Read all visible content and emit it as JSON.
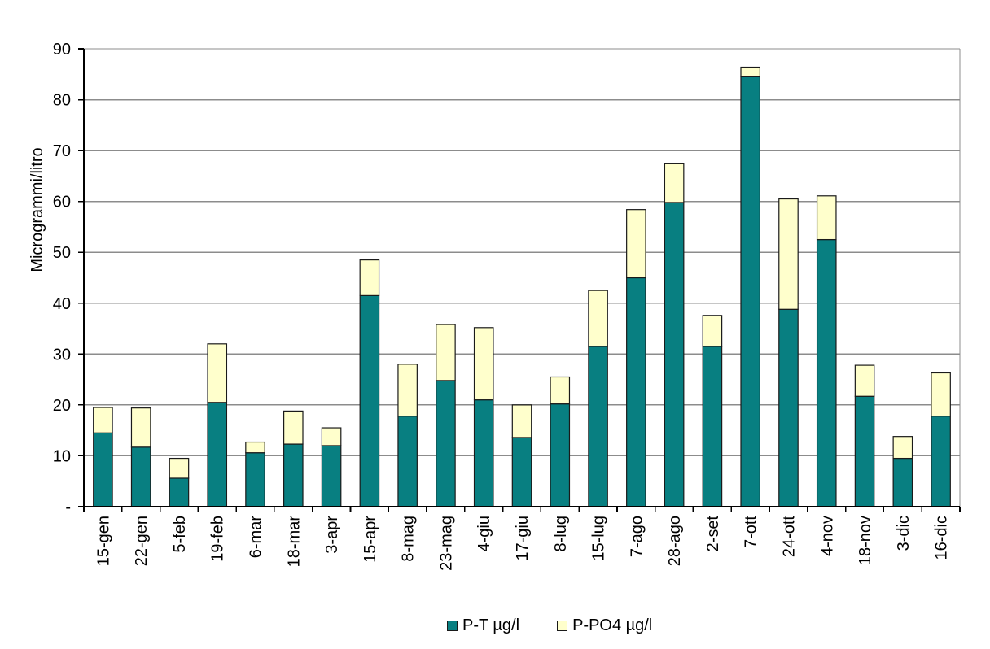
{
  "page": {
    "background": "#ffffff"
  },
  "chart_data": {
    "type": "bar",
    "stacked": true,
    "title": "",
    "xlabel": "",
    "ylabel": "Microgrammi/litro",
    "ylim": [
      0,
      90
    ],
    "y_tick_step": 10,
    "y_zero_label": "-",
    "grid": true,
    "legend_position": "bottom",
    "categories": [
      "15-gen",
      "22-gen",
      "5-feb",
      "19-feb",
      "6-mar",
      "18-mar",
      "3-apr",
      "15-apr",
      "8-mag",
      "23-mag",
      "4-giu",
      "17-giu",
      "8-lug",
      "15-lug",
      "7-ago",
      "28-ago",
      "2-set",
      "7-ott",
      "24-ott",
      "4-nov",
      "18-nov",
      "3-dic",
      "16-dic"
    ],
    "series": [
      {
        "name": "P-T µg/l",
        "color": "#087f81",
        "values": [
          14.5,
          11.7,
          5.6,
          20.5,
          10.6,
          12.3,
          12.0,
          41.5,
          17.8,
          24.8,
          21.0,
          13.6,
          20.2,
          31.5,
          45.0,
          59.8,
          31.5,
          84.5,
          38.8,
          52.5,
          21.7,
          9.5,
          17.8
        ]
      },
      {
        "name": "P-PO4 µg/l",
        "color": "#ffffcc",
        "values": [
          5.0,
          7.7,
          3.9,
          11.5,
          2.1,
          6.5,
          3.5,
          7.0,
          10.2,
          11.0,
          14.2,
          6.4,
          5.3,
          11.0,
          13.4,
          7.6,
          6.1,
          1.9,
          21.7,
          8.6,
          6.1,
          4.3,
          8.5
        ]
      }
    ],
    "stack_totals": [
      19.5,
      19.4,
      9.5,
      32.0,
      12.7,
      18.8,
      15.5,
      48.5,
      28.0,
      35.8,
      35.2,
      20.0,
      25.5,
      42.5,
      58.4,
      67.4,
      37.6,
      86.4,
      60.5,
      61.1,
      27.8,
      13.8,
      26.3
    ],
    "colors": {
      "grid": "#8c8c8c",
      "plot_border": "#8c8c8c",
      "axis": "#000000",
      "bar_border": "#1a1a1a",
      "text": "#000000",
      "background": "#ffffff"
    }
  }
}
